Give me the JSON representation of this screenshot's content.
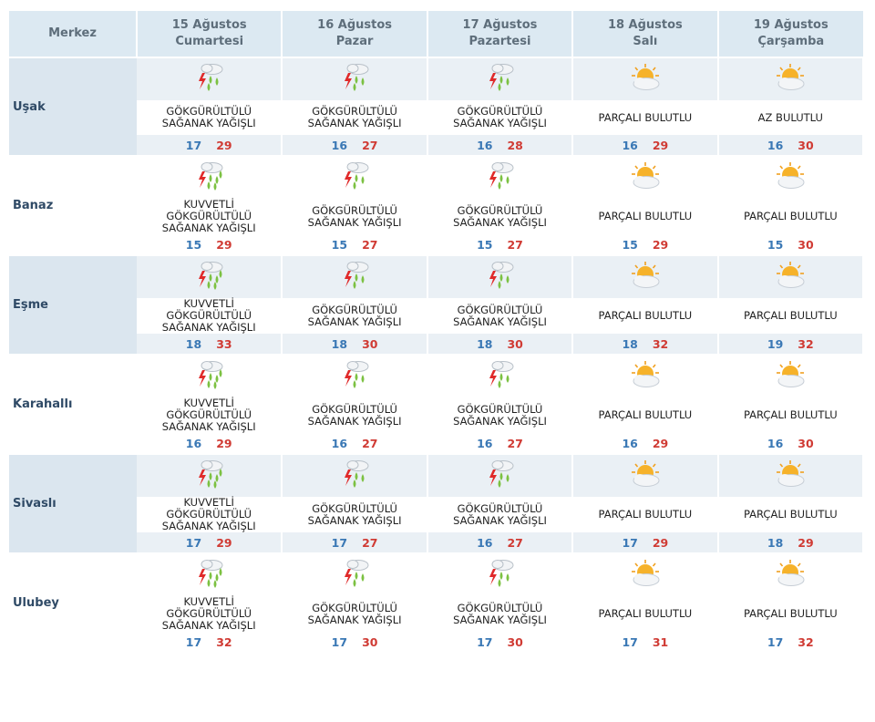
{
  "header": {
    "merkez": "Merkez",
    "days": [
      {
        "date": "15 Ağustos",
        "weekday": "Cumartesi"
      },
      {
        "date": "16 Ağustos",
        "weekday": "Pazar"
      },
      {
        "date": "17 Ağustos",
        "weekday": "Pazartesi"
      },
      {
        "date": "18 Ağustos",
        "weekday": "Salı"
      },
      {
        "date": "19 Ağustos",
        "weekday": "Çarşamba"
      }
    ]
  },
  "rows": [
    {
      "city": "Uşak",
      "days": [
        {
          "icon": "thunderstorm-rain-icon",
          "lines": [
            "GÖKGÜRÜLTÜLÜ",
            "SAĞANAK YAĞIŞLI"
          ],
          "low": "17",
          "high": "29"
        },
        {
          "icon": "thunderstorm-rain-icon",
          "lines": [
            "GÖKGÜRÜLTÜLÜ",
            "SAĞANAK YAĞIŞLI"
          ],
          "low": "16",
          "high": "27"
        },
        {
          "icon": "thunderstorm-rain-icon",
          "lines": [
            "GÖKGÜRÜLTÜLÜ",
            "SAĞANAK YAĞIŞLI"
          ],
          "low": "16",
          "high": "28"
        },
        {
          "icon": "partly-cloudy-icon",
          "lines": [
            "PARÇALI BULUTLU"
          ],
          "low": "16",
          "high": "29"
        },
        {
          "icon": "partly-cloudy-icon",
          "lines": [
            "AZ BULUTLU"
          ],
          "low": "16",
          "high": "30"
        }
      ]
    },
    {
      "city": "Banaz",
      "days": [
        {
          "icon": "heavy-thunderstorm-rain-icon",
          "lines": [
            "KUVVETLİ",
            "GÖKGÜRÜLTÜLÜ",
            "SAĞANAK YAĞIŞLI"
          ],
          "low": "15",
          "high": "29"
        },
        {
          "icon": "thunderstorm-rain-icon",
          "lines": [
            "GÖKGÜRÜLTÜLÜ",
            "SAĞANAK YAĞIŞLI"
          ],
          "low": "15",
          "high": "27"
        },
        {
          "icon": "thunderstorm-rain-icon",
          "lines": [
            "GÖKGÜRÜLTÜLÜ",
            "SAĞANAK YAĞIŞLI"
          ],
          "low": "15",
          "high": "27"
        },
        {
          "icon": "partly-cloudy-icon",
          "lines": [
            "PARÇALI BULUTLU"
          ],
          "low": "15",
          "high": "29"
        },
        {
          "icon": "partly-cloudy-icon",
          "lines": [
            "PARÇALI BULUTLU"
          ],
          "low": "15",
          "high": "30"
        }
      ]
    },
    {
      "city": "Eşme",
      "days": [
        {
          "icon": "heavy-thunderstorm-rain-icon",
          "lines": [
            "KUVVETLİ",
            "GÖKGÜRÜLTÜLÜ",
            "SAĞANAK YAĞIŞLI"
          ],
          "low": "18",
          "high": "33"
        },
        {
          "icon": "thunderstorm-rain-icon",
          "lines": [
            "GÖKGÜRÜLTÜLÜ",
            "SAĞANAK YAĞIŞLI"
          ],
          "low": "18",
          "high": "30"
        },
        {
          "icon": "thunderstorm-rain-icon",
          "lines": [
            "GÖKGÜRÜLTÜLÜ",
            "SAĞANAK YAĞIŞLI"
          ],
          "low": "18",
          "high": "30"
        },
        {
          "icon": "partly-cloudy-icon",
          "lines": [
            "PARÇALI BULUTLU"
          ],
          "low": "18",
          "high": "32"
        },
        {
          "icon": "partly-cloudy-icon",
          "lines": [
            "PARÇALI BULUTLU"
          ],
          "low": "19",
          "high": "32"
        }
      ]
    },
    {
      "city": "Karahallı",
      "days": [
        {
          "icon": "heavy-thunderstorm-rain-icon",
          "lines": [
            "KUVVETLİ",
            "GÖKGÜRÜLTÜLÜ",
            "SAĞANAK YAĞIŞLI"
          ],
          "low": "16",
          "high": "29"
        },
        {
          "icon": "thunderstorm-rain-icon",
          "lines": [
            "GÖKGÜRÜLTÜLÜ",
            "SAĞANAK YAĞIŞLI"
          ],
          "low": "16",
          "high": "27"
        },
        {
          "icon": "thunderstorm-rain-icon",
          "lines": [
            "GÖKGÜRÜLTÜLÜ",
            "SAĞANAK YAĞIŞLI"
          ],
          "low": "16",
          "high": "27"
        },
        {
          "icon": "partly-cloudy-icon",
          "lines": [
            "PARÇALI BULUTLU"
          ],
          "low": "16",
          "high": "29"
        },
        {
          "icon": "partly-cloudy-icon",
          "lines": [
            "PARÇALI BULUTLU"
          ],
          "low": "16",
          "high": "30"
        }
      ]
    },
    {
      "city": "Sivaslı",
      "days": [
        {
          "icon": "heavy-thunderstorm-rain-icon",
          "lines": [
            "KUVVETLİ",
            "GÖKGÜRÜLTÜLÜ",
            "SAĞANAK YAĞIŞLI"
          ],
          "low": "17",
          "high": "29"
        },
        {
          "icon": "thunderstorm-rain-icon",
          "lines": [
            "GÖKGÜRÜLTÜLÜ",
            "SAĞANAK YAĞIŞLI"
          ],
          "low": "17",
          "high": "27"
        },
        {
          "icon": "thunderstorm-rain-icon",
          "lines": [
            "GÖKGÜRÜLTÜLÜ",
            "SAĞANAK YAĞIŞLI"
          ],
          "low": "16",
          "high": "27"
        },
        {
          "icon": "partly-cloudy-icon",
          "lines": [
            "PARÇALI BULUTLU"
          ],
          "low": "17",
          "high": "29"
        },
        {
          "icon": "partly-cloudy-icon",
          "lines": [
            "PARÇALI BULUTLU"
          ],
          "low": "18",
          "high": "29"
        }
      ]
    },
    {
      "city": "Ulubey",
      "days": [
        {
          "icon": "heavy-thunderstorm-rain-icon",
          "lines": [
            "KUVVETLİ",
            "GÖKGÜRÜLTÜLÜ",
            "SAĞANAK YAĞIŞLI"
          ],
          "low": "17",
          "high": "32"
        },
        {
          "icon": "thunderstorm-rain-icon",
          "lines": [
            "GÖKGÜRÜLTÜLÜ",
            "SAĞANAK YAĞIŞLI"
          ],
          "low": "17",
          "high": "30"
        },
        {
          "icon": "thunderstorm-rain-icon",
          "lines": [
            "GÖKGÜRÜLTÜLÜ",
            "SAĞANAK YAĞIŞLI"
          ],
          "low": "17",
          "high": "30"
        },
        {
          "icon": "partly-cloudy-icon",
          "lines": [
            "PARÇALI BULUTLU"
          ],
          "low": "17",
          "high": "31"
        },
        {
          "icon": "partly-cloudy-icon",
          "lines": [
            "PARÇALI BULUTLU"
          ],
          "low": "17",
          "high": "32"
        }
      ]
    }
  ],
  "colors": {
    "header_bg": "#dce9f2",
    "row_shade": "#eaf0f5",
    "low_temp": "#3a78b5",
    "high_temp": "#d03b34"
  }
}
